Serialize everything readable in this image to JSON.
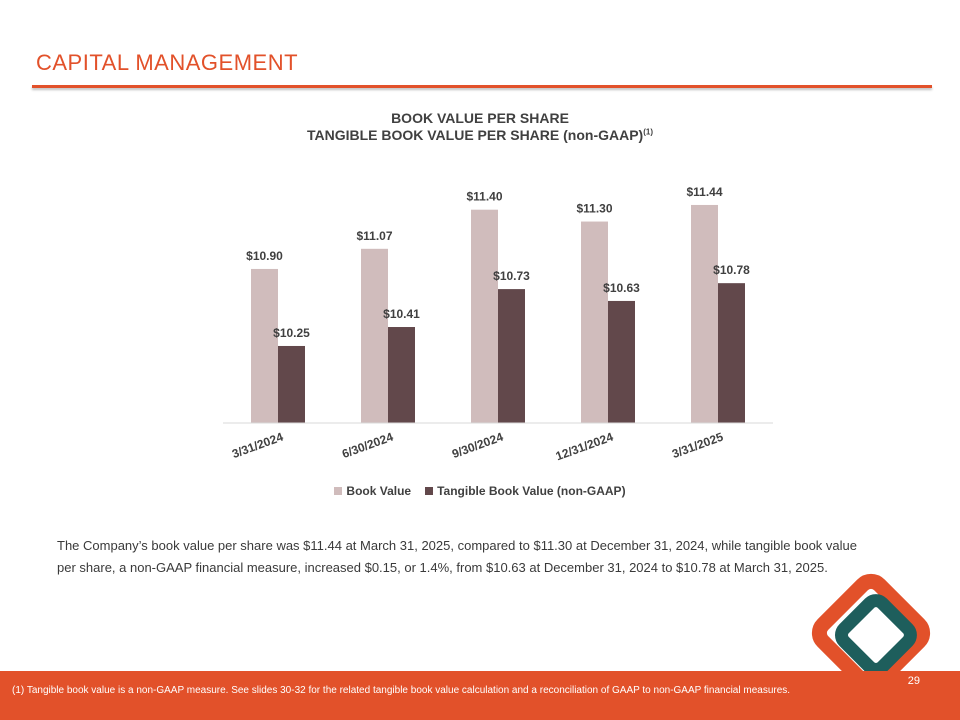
{
  "slide": {
    "title": "CAPITAL MANAGEMENT",
    "page_number": "29"
  },
  "chart_data": {
    "type": "bar",
    "title": "BOOK VALUE PER SHARE",
    "subtitle": "TANGIBLE BOOK VALUE PER SHARE (non-GAAP)",
    "subtitle_note": "(1)",
    "categories": [
      "3/31/2024",
      "6/30/2024",
      "9/30/2024",
      "12/31/2024",
      "3/31/2025"
    ],
    "series": [
      {
        "name": "Book Value",
        "color": "#d0bcbc",
        "values": [
          10.9,
          11.07,
          11.4,
          11.3,
          11.44
        ],
        "labels": [
          "$10.90",
          "$11.07",
          "$11.40",
          "$11.30",
          "$11.44"
        ]
      },
      {
        "name": "Tangible Book Value (non-GAAP)",
        "color": "#62484b",
        "values": [
          10.25,
          10.41,
          10.73,
          10.63,
          10.78
        ],
        "labels": [
          "$10.25",
          "$10.41",
          "$10.73",
          "$10.63",
          "$10.78"
        ]
      }
    ],
    "xlabel": "",
    "ylabel": "",
    "ylim": [
      9.6,
      11.6
    ],
    "grid": false,
    "legend_position": "bottom"
  },
  "summary": {
    "text": "The Company’s book value per share was $11.44 at March 31, 2025, compared to $11.30 at December 31, 2024, while tangible book value per share, a non-GAAP financial measure, increased $0.15, or 1.4%, from $10.63 at December 31, 2024 to $10.78 at March 31, 2025."
  },
  "footer": {
    "footnote": "(1) Tangible book value is a non-GAAP measure.  See slides 30-32 for the related tangible book value calculation and a reconciliation of GAAP to non-GAAP financial measures."
  },
  "colors": {
    "accent": "#e2512a",
    "logo_teal": "#1e5e5c",
    "text": "#404040"
  },
  "logo": {
    "icon": "nested-diamond-logo"
  }
}
